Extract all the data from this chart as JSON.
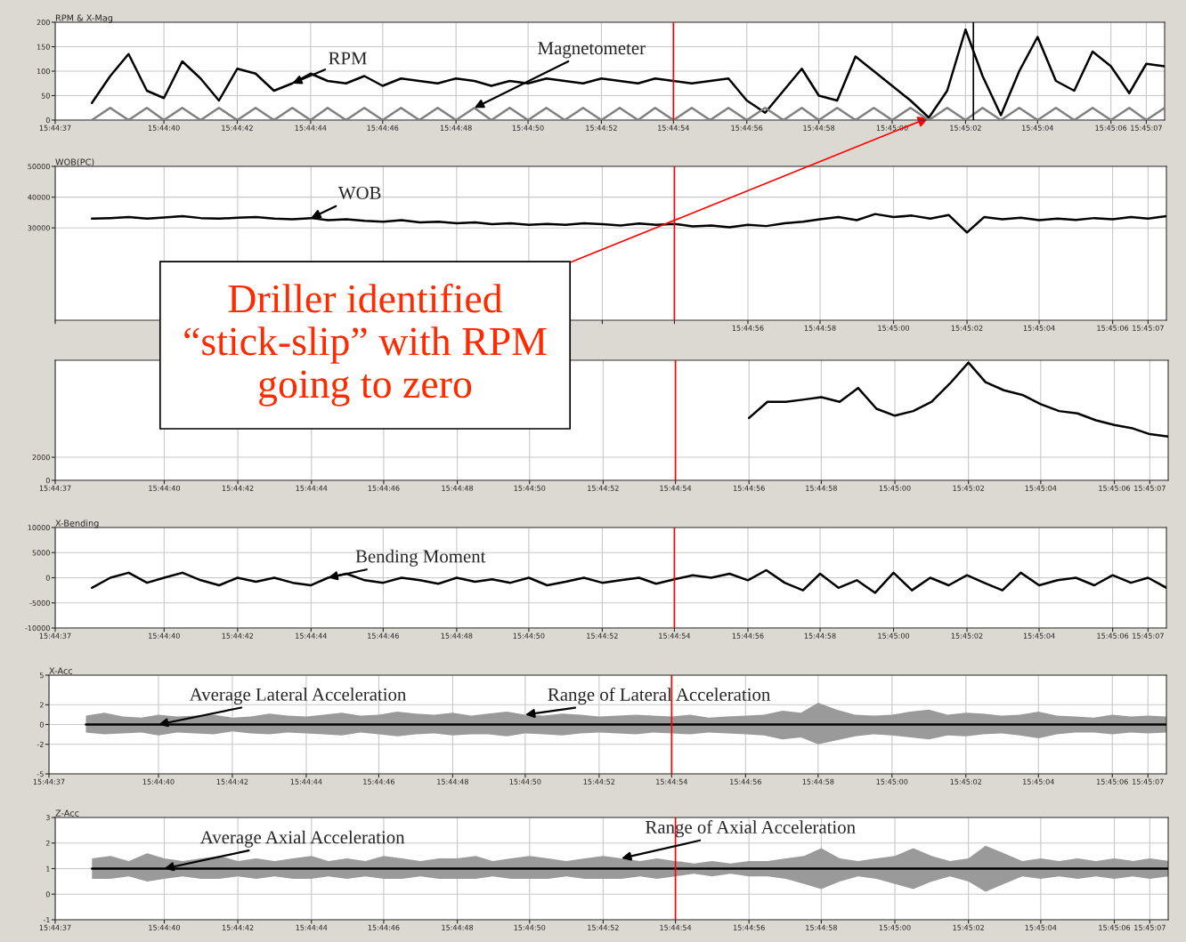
{
  "chart_data": [
    {
      "type": "line",
      "title": "RPM & X-Mag",
      "x": [
        15.74389,
        15.74403,
        15.74417,
        15.74431,
        15.74444,
        15.74458,
        15.74472,
        15.74486,
        15.745,
        15.74514,
        15.74528,
        15.74542,
        15.74556,
        15.74569,
        15.74583,
        15.74597,
        15.74611,
        15.74625,
        15.74639,
        15.74653,
        15.74667,
        15.74681,
        15.74694,
        15.74708,
        15.74722,
        15.74736,
        15.7475,
        15.74764,
        15.74778,
        15.74792,
        15.74806,
        15.74819,
        15.74833,
        15.74847,
        15.74861,
        15.74875,
        15.74889,
        15.74903,
        15.74917,
        15.74931,
        15.74944,
        15.74958,
        15.74972,
        15.74986,
        15.75,
        15.75014,
        15.75028,
        15.75042,
        15.75056,
        15.75069,
        15.75083,
        15.75097,
        15.75111,
        15.75125,
        15.75139,
        15.75153,
        15.75167,
        15.75181,
        15.75194,
        15.75208
      ],
      "series": [
        {
          "color": "#000000",
          "values": [
            35,
            90,
            135,
            60,
            45,
            120,
            85,
            40,
            105,
            95,
            60,
            75,
            95,
            80,
            75,
            90,
            70,
            85,
            80,
            75,
            85,
            80,
            70,
            80,
            75,
            85,
            80,
            75,
            85,
            80,
            75,
            85,
            80,
            75,
            80,
            85,
            40,
            15,
            60,
            105,
            50,
            40,
            130,
            100,
            70,
            40,
            5,
            60,
            185,
            90,
            10,
            100,
            170,
            80,
            60,
            140,
            110,
            55,
            115,
            110
          ]
        },
        {
          "color": "#808080",
          "values": [
            0,
            25,
            0,
            25,
            0,
            25,
            0,
            25,
            0,
            25,
            0,
            25,
            0,
            25,
            0,
            25,
            0,
            25,
            0,
            25,
            0,
            25,
            0,
            25,
            0,
            25,
            0,
            25,
            0,
            25,
            0,
            25,
            0,
            25,
            0,
            25,
            0,
            25,
            0,
            25,
            0,
            25,
            0,
            25,
            0,
            25,
            0,
            25,
            0,
            25,
            0,
            25,
            0,
            25,
            0,
            25,
            0,
            25,
            0,
            25
          ]
        }
      ],
      "xlim": [
        15.74361,
        15.75208
      ],
      "xticks": [
        {
          "value": 15.74361,
          "label": "15:44:37"
        },
        {
          "value": 15.74444,
          "label": "15:44:40"
        },
        {
          "value": 15.745,
          "label": "15:44:42"
        },
        {
          "value": 15.74556,
          "label": "15:44:44"
        },
        {
          "value": 15.74611,
          "label": "15:44:46"
        },
        {
          "value": 15.74667,
          "label": "15:44:48"
        },
        {
          "value": 15.74722,
          "label": "15:44:50"
        },
        {
          "value": 15.74778,
          "label": "15:44:52"
        },
        {
          "value": 15.74833,
          "label": "15:44:54"
        },
        {
          "value": 15.74889,
          "label": "15:44:56"
        },
        {
          "value": 15.74944,
          "label": "15:44:58"
        },
        {
          "value": 15.75,
          "label": "15:45:00"
        },
        {
          "value": 15.75056,
          "label": "15:45:02"
        },
        {
          "value": 15.75111,
          "label": "15:45:04"
        },
        {
          "value": 15.75167,
          "label": "15:45:06"
        },
        {
          "value": 15.75194,
          "label": "15:45:07"
        }
      ],
      "ylim": [
        0,
        200
      ],
      "yticks": [
        0,
        50,
        100,
        150,
        200
      ],
      "grid": true,
      "ref_lines": [
        {
          "axis": "x",
          "value": 15.74833,
          "color": "#ff0000"
        },
        {
          "axis": "x",
          "value": 15.75062,
          "color": "#000000"
        }
      ],
      "annotations": [
        {
          "text": "RPM",
          "x": 15.74542,
          "y": 75
        },
        {
          "text": "Magnetometer",
          "x": 15.74681,
          "y": 25
        },
        {
          "text": "Driller identified “stick-slip” with RPM going to zero",
          "x": 15.75028,
          "y": 5
        }
      ]
    },
    {
      "type": "line",
      "title": "WOB(PC)",
      "x": [
        15.74389,
        15.74403,
        15.74417,
        15.74431,
        15.74444,
        15.74458,
        15.74472,
        15.74486,
        15.745,
        15.74514,
        15.74528,
        15.74542,
        15.74556,
        15.74569,
        15.74583,
        15.74597,
        15.74611,
        15.74625,
        15.74639,
        15.74653,
        15.74667,
        15.74681,
        15.74694,
        15.74708,
        15.74722,
        15.74736,
        15.7475,
        15.74764,
        15.74778,
        15.74792,
        15.74806,
        15.74819,
        15.74833,
        15.74847,
        15.74861,
        15.74875,
        15.74889,
        15.74903,
        15.74917,
        15.74931,
        15.74944,
        15.74958,
        15.74972,
        15.74986,
        15.75,
        15.75014,
        15.75028,
        15.75042,
        15.75056,
        15.75069,
        15.75083,
        15.75097,
        15.75111,
        15.75125,
        15.75139,
        15.75153,
        15.75167,
        15.75181,
        15.75194,
        15.75208
      ],
      "series": [
        {
          "color": "#000000",
          "values": [
            33000,
            33200,
            33500,
            33000,
            33400,
            33800,
            33200,
            33000,
            33300,
            33500,
            33000,
            32800,
            33200,
            32500,
            32800,
            32300,
            32000,
            32500,
            31800,
            32000,
            31500,
            31800,
            31200,
            31500,
            31000,
            31300,
            31000,
            31500,
            31200,
            30800,
            31400,
            31000,
            31300,
            30500,
            30800,
            30200,
            31000,
            30600,
            31500,
            32000,
            32800,
            33500,
            32500,
            34500,
            33500,
            34000,
            33000,
            34200,
            28500,
            33500,
            32800,
            33300,
            32500,
            33000,
            32600,
            33200,
            32800,
            33500,
            33000,
            33800
          ]
        }
      ],
      "xlim": [
        15.74361,
        15.75208
      ],
      "xticks": [
        {
          "value": 15.74361,
          "label": null
        },
        {
          "value": 15.74444,
          "label": null
        },
        {
          "value": 15.745,
          "label": null
        },
        {
          "value": 15.74556,
          "label": null
        },
        {
          "value": 15.74611,
          "label": null
        },
        {
          "value": 15.74667,
          "label": null
        },
        {
          "value": 15.74722,
          "label": null
        },
        {
          "value": 15.74778,
          "label": null
        },
        {
          "value": 15.74833,
          "label": null
        },
        {
          "value": 15.74889,
          "label": "15:44:56"
        },
        {
          "value": 15.74944,
          "label": "15:44:58"
        },
        {
          "value": 15.75,
          "label": "15:45:00"
        },
        {
          "value": 15.75056,
          "label": "15:45:02"
        },
        {
          "value": 15.75111,
          "label": "15:45:04"
        },
        {
          "value": 15.75167,
          "label": "15:45:06"
        },
        {
          "value": 15.75194,
          "label": "15:45:07"
        }
      ],
      "ylim": [
        0,
        50000
      ],
      "yticks": [
        30000,
        40000,
        50000
      ],
      "grid": true,
      "ref_lines": [
        {
          "axis": "x",
          "value": 15.74833,
          "color": "#ff0000"
        }
      ],
      "annotations": [
        {
          "text": "WOB",
          "x": 15.74556,
          "y": 33200
        }
      ]
    },
    {
      "type": "line",
      "x": [
        15.74889,
        15.74903,
        15.74917,
        15.74931,
        15.74944,
        15.74958,
        15.74972,
        15.74986,
        15.75,
        15.75014,
        15.75028,
        15.75042,
        15.75056,
        15.75069,
        15.75083,
        15.75097,
        15.75111,
        15.75125,
        15.75139,
        15.75153,
        15.75167,
        15.75181,
        15.75194,
        15.75208
      ],
      "series": [
        {
          "color": "#000000",
          "values": [
            5400,
            6800,
            6800,
            7000,
            7200,
            6800,
            8000,
            6200,
            5600,
            6000,
            6800,
            8400,
            10200,
            8500,
            7800,
            7400,
            6600,
            6000,
            5800,
            5200,
            4800,
            4500,
            4000,
            3800
          ]
        }
      ],
      "xlim": [
        15.74361,
        15.75208
      ],
      "xticks": [
        {
          "value": 15.74361,
          "label": "15:44:37"
        },
        {
          "value": 15.74444,
          "label": "15:44:40"
        },
        {
          "value": 15.745,
          "label": "15:44:42"
        },
        {
          "value": 15.74556,
          "label": "15:44:44"
        },
        {
          "value": 15.74611,
          "label": "15:44:46"
        },
        {
          "value": 15.74667,
          "label": "15:44:48"
        },
        {
          "value": 15.74722,
          "label": "15:44:50"
        },
        {
          "value": 15.74778,
          "label": "15:44:52"
        },
        {
          "value": 15.74833,
          "label": "15:44:54"
        },
        {
          "value": 15.74889,
          "label": "15:44:56"
        },
        {
          "value": 15.74944,
          "label": "15:44:58"
        },
        {
          "value": 15.75,
          "label": "15:45:00"
        },
        {
          "value": 15.75056,
          "label": "15:45:02"
        },
        {
          "value": 15.75111,
          "label": "15:45:04"
        },
        {
          "value": 15.75167,
          "label": "15:45:06"
        },
        {
          "value": 15.75194,
          "label": "15:45:07"
        }
      ],
      "ylim": [
        0,
        10400
      ],
      "yticks": [
        0,
        2000
      ],
      "grid": true,
      "ref_lines": [
        {
          "axis": "x",
          "value": 15.74833,
          "color": "#ff0000"
        }
      ]
    },
    {
      "type": "line",
      "title": "X-Bending",
      "x": [
        15.74389,
        15.74403,
        15.74417,
        15.74431,
        15.74444,
        15.74458,
        15.74472,
        15.74486,
        15.745,
        15.74514,
        15.74528,
        15.74542,
        15.74556,
        15.74569,
        15.74583,
        15.74597,
        15.74611,
        15.74625,
        15.74639,
        15.74653,
        15.74667,
        15.74681,
        15.74694,
        15.74708,
        15.74722,
        15.74736,
        15.7475,
        15.74764,
        15.74778,
        15.74792,
        15.74806,
        15.74819,
        15.74833,
        15.74847,
        15.74861,
        15.74875,
        15.74889,
        15.74903,
        15.74917,
        15.74931,
        15.74944,
        15.74958,
        15.74972,
        15.74986,
        15.75,
        15.75014,
        15.75028,
        15.75042,
        15.75056,
        15.75069,
        15.75083,
        15.75097,
        15.75111,
        15.75125,
        15.75139,
        15.75153,
        15.75167,
        15.75181,
        15.75194,
        15.75208
      ],
      "series": [
        {
          "color": "#000000",
          "values": [
            -2000,
            0,
            1000,
            -1000,
            0,
            1000,
            -500,
            -1500,
            0,
            -800,
            0,
            -1000,
            -1500,
            0,
            800,
            -500,
            -1000,
            0,
            -500,
            -1200,
            0,
            -800,
            -300,
            -1000,
            0,
            -1500,
            -800,
            0,
            -1000,
            -500,
            0,
            -1200,
            -300,
            500,
            0,
            800,
            -500,
            1500,
            -1000,
            -2500,
            800,
            -2000,
            -500,
            -3000,
            1000,
            -2500,
            0,
            -1500,
            500,
            -1000,
            -2500,
            1000,
            -1500,
            -500,
            0,
            -1500,
            500,
            -1000,
            0,
            -2000
          ]
        }
      ],
      "xlim": [
        15.74361,
        15.75208
      ],
      "xticks": [
        {
          "value": 15.74361,
          "label": "15:44:37"
        },
        {
          "value": 15.74444,
          "label": "15:44:40"
        },
        {
          "value": 15.745,
          "label": "15:44:42"
        },
        {
          "value": 15.74556,
          "label": "15:44:44"
        },
        {
          "value": 15.74611,
          "label": "15:44:46"
        },
        {
          "value": 15.74667,
          "label": "15:44:48"
        },
        {
          "value": 15.74722,
          "label": "15:44:50"
        },
        {
          "value": 15.74778,
          "label": "15:44:52"
        },
        {
          "value": 15.74833,
          "label": "15:44:54"
        },
        {
          "value": 15.74889,
          "label": "15:44:56"
        },
        {
          "value": 15.74944,
          "label": "15:44:58"
        },
        {
          "value": 15.75,
          "label": "15:45:00"
        },
        {
          "value": 15.75056,
          "label": "15:45:02"
        },
        {
          "value": 15.75111,
          "label": "15:45:04"
        },
        {
          "value": 15.75167,
          "label": "15:45:06"
        },
        {
          "value": 15.75194,
          "label": "15:45:07"
        }
      ],
      "ylim": [
        -10000,
        10000
      ],
      "yticks": [
        -10000,
        -5000,
        0,
        5000,
        10000
      ],
      "grid": true,
      "ref_lines": [
        {
          "axis": "x",
          "value": 15.74833,
          "color": "#ff0000"
        }
      ],
      "annotations": [
        {
          "text": "Bending Moment",
          "x": 15.74569,
          "y": 0
        }
      ]
    },
    {
      "type": "line",
      "title": "X-Acc",
      "x": [
        15.74389,
        15.74403,
        15.74417,
        15.74431,
        15.74444,
        15.74458,
        15.74472,
        15.74486,
        15.745,
        15.74514,
        15.74528,
        15.74542,
        15.74556,
        15.74569,
        15.74583,
        15.74597,
        15.74611,
        15.74625,
        15.74639,
        15.74653,
        15.74667,
        15.74681,
        15.74694,
        15.74708,
        15.74722,
        15.74736,
        15.7475,
        15.74764,
        15.74778,
        15.74792,
        15.74806,
        15.74819,
        15.74833,
        15.74847,
        15.74861,
        15.74875,
        15.74889,
        15.74903,
        15.74917,
        15.74931,
        15.74944,
        15.74958,
        15.74972,
        15.74986,
        15.75,
        15.75014,
        15.75028,
        15.75042,
        15.75056,
        15.75069,
        15.75083,
        15.75097,
        15.75111,
        15.75125,
        15.75139,
        15.75153,
        15.75167,
        15.75181,
        15.75194,
        15.75208
      ],
      "series": [
        {
          "color": "#000000",
          "values": [
            0,
            0,
            0,
            0,
            0,
            0,
            0,
            0,
            0,
            0,
            0,
            0,
            0,
            0,
            0,
            0,
            0,
            0,
            0,
            0,
            0,
            0,
            0,
            0,
            0,
            0,
            0,
            0,
            0,
            0,
            0,
            0,
            0,
            0,
            0,
            0,
            0,
            0,
            0,
            0,
            0,
            0,
            0,
            0,
            0,
            0,
            0,
            0,
            0,
            0,
            0,
            0,
            0,
            0,
            0,
            0,
            0,
            0,
            0,
            0
          ],
          "upper": [
            0.9,
            1.2,
            0.8,
            0.7,
            1.0,
            0.8,
            0.9,
            1.0,
            0.7,
            0.8,
            1.1,
            0.9,
            0.8,
            1.0,
            1.2,
            0.9,
            1.0,
            1.3,
            1.1,
            1.0,
            1.2,
            0.9,
            1.1,
            1.3,
            1.0,
            0.9,
            1.1,
            1.0,
            0.8,
            0.9,
            1.0,
            0.9,
            0.8,
            1.0,
            0.7,
            0.8,
            0.9,
            1.0,
            1.4,
            1.2,
            2.2,
            1.5,
            1.0,
            0.9,
            1.0,
            1.3,
            1.5,
            1.0,
            1.2,
            1.1,
            0.9,
            1.0,
            1.3,
            0.9,
            0.8,
            0.7,
            1.0,
            0.8,
            0.9,
            0.8
          ],
          "lower": [
            -0.8,
            -1.0,
            -0.9,
            -0.8,
            -1.1,
            -0.8,
            -0.9,
            -1.0,
            -0.7,
            -0.9,
            -1.0,
            -0.8,
            -0.9,
            -1.0,
            -1.1,
            -0.8,
            -1.0,
            -1.2,
            -1.0,
            -0.9,
            -1.1,
            -1.0,
            -1.0,
            -1.2,
            -0.9,
            -1.0,
            -1.1,
            -0.9,
            -0.8,
            -0.9,
            -1.0,
            -0.8,
            -0.9,
            -1.0,
            -0.8,
            -0.9,
            -1.0,
            -1.1,
            -1.5,
            -1.3,
            -2.0,
            -1.6,
            -1.2,
            -1.0,
            -1.1,
            -1.3,
            -1.5,
            -1.1,
            -1.2,
            -1.0,
            -0.9,
            -1.1,
            -1.4,
            -1.0,
            -0.8,
            -0.8,
            -1.0,
            -0.8,
            -0.9,
            -0.8
          ]
        }
      ],
      "xlim": [
        15.74361,
        15.75208
      ],
      "xticks": [
        {
          "value": 15.74361,
          "label": "15:44:37"
        },
        {
          "value": 15.74444,
          "label": "15:44:40"
        },
        {
          "value": 15.745,
          "label": "15:44:42"
        },
        {
          "value": 15.74556,
          "label": "15:44:44"
        },
        {
          "value": 15.74611,
          "label": "15:44:46"
        },
        {
          "value": 15.74667,
          "label": "15:44:48"
        },
        {
          "value": 15.74722,
          "label": "15:44:50"
        },
        {
          "value": 15.74778,
          "label": "15:44:52"
        },
        {
          "value": 15.74833,
          "label": "15:44:54"
        },
        {
          "value": 15.74889,
          "label": "15:44:56"
        },
        {
          "value": 15.74944,
          "label": "15:44:58"
        },
        {
          "value": 15.75,
          "label": "15:45:00"
        },
        {
          "value": 15.75056,
          "label": "15:45:02"
        },
        {
          "value": 15.75111,
          "label": "15:45:04"
        },
        {
          "value": 15.75167,
          "label": "15:45:06"
        },
        {
          "value": 15.75194,
          "label": "15:45:07"
        }
      ],
      "ylim": [
        -5,
        5
      ],
      "yticks": [
        -5,
        -2,
        0,
        2,
        5
      ],
      "grid": true,
      "ref_lines": [
        {
          "axis": "x",
          "value": 15.74833,
          "color": "#ff0000"
        }
      ],
      "annotations": [
        {
          "text": "Average Lateral Acceleration",
          "x": 15.74444,
          "y": 0
        },
        {
          "text": "Range of Lateral Acceleration",
          "x": 15.74722,
          "y": 1.0
        }
      ]
    },
    {
      "type": "line",
      "title": "Z-Acc",
      "x": [
        15.74389,
        15.74403,
        15.74417,
        15.74431,
        15.74444,
        15.74458,
        15.74472,
        15.74486,
        15.745,
        15.74514,
        15.74528,
        15.74542,
        15.74556,
        15.74569,
        15.74583,
        15.74597,
        15.74611,
        15.74625,
        15.74639,
        15.74653,
        15.74667,
        15.74681,
        15.74694,
        15.74708,
        15.74722,
        15.74736,
        15.7475,
        15.74764,
        15.74778,
        15.74792,
        15.74806,
        15.74819,
        15.74833,
        15.74847,
        15.74861,
        15.74875,
        15.74889,
        15.74903,
        15.74917,
        15.74931,
        15.74944,
        15.74958,
        15.74972,
        15.74986,
        15.75,
        15.75014,
        15.75028,
        15.75042,
        15.75056,
        15.75069,
        15.75083,
        15.75097,
        15.75111,
        15.75125,
        15.75139,
        15.75153,
        15.75167,
        15.75181,
        15.75194,
        15.75208
      ],
      "series": [
        {
          "color": "#000000",
          "values": [
            1,
            1,
            1,
            1,
            1,
            1,
            1,
            1,
            1,
            1,
            1,
            1,
            1,
            1,
            1,
            1,
            1,
            1,
            1,
            1,
            1,
            1,
            1,
            1,
            1,
            1,
            1,
            1,
            1,
            1,
            1,
            1,
            1,
            1,
            1,
            1,
            1,
            1,
            1,
            1,
            1,
            1,
            1,
            1,
            1,
            1,
            1,
            1,
            1,
            1,
            1,
            1,
            1,
            1,
            1,
            1,
            1,
            1,
            1,
            1
          ],
          "upper": [
            1.4,
            1.5,
            1.3,
            1.6,
            1.4,
            1.3,
            1.4,
            1.5,
            1.3,
            1.4,
            1.3,
            1.4,
            1.5,
            1.3,
            1.4,
            1.3,
            1.5,
            1.4,
            1.3,
            1.4,
            1.4,
            1.5,
            1.3,
            1.4,
            1.5,
            1.4,
            1.3,
            1.4,
            1.5,
            1.4,
            1.3,
            1.4,
            1.3,
            1.2,
            1.3,
            1.2,
            1.3,
            1.3,
            1.4,
            1.5,
            1.8,
            1.4,
            1.3,
            1.4,
            1.5,
            1.8,
            1.5,
            1.3,
            1.4,
            1.9,
            1.6,
            1.3,
            1.4,
            1.3,
            1.4,
            1.3,
            1.4,
            1.3,
            1.4,
            1.3
          ],
          "lower": [
            0.6,
            0.6,
            0.7,
            0.5,
            0.6,
            0.7,
            0.6,
            0.6,
            0.7,
            0.6,
            0.7,
            0.6,
            0.6,
            0.7,
            0.6,
            0.7,
            0.6,
            0.6,
            0.7,
            0.6,
            0.6,
            0.6,
            0.7,
            0.6,
            0.6,
            0.6,
            0.7,
            0.6,
            0.6,
            0.6,
            0.7,
            0.6,
            0.7,
            0.8,
            0.7,
            0.8,
            0.7,
            0.7,
            0.6,
            0.4,
            0.2,
            0.5,
            0.7,
            0.6,
            0.4,
            0.2,
            0.5,
            0.7,
            0.5,
            0.1,
            0.4,
            0.7,
            0.6,
            0.7,
            0.6,
            0.7,
            0.6,
            0.7,
            0.6,
            0.7
          ]
        }
      ],
      "xlim": [
        15.74361,
        15.75208
      ],
      "xticks": [
        {
          "value": 15.74361,
          "label": "15:44:37"
        },
        {
          "value": 15.74444,
          "label": "15:44:40"
        },
        {
          "value": 15.745,
          "label": "15:44:42"
        },
        {
          "value": 15.74556,
          "label": "15:44:44"
        },
        {
          "value": 15.74611,
          "label": "15:44:46"
        },
        {
          "value": 15.74667,
          "label": "15:44:48"
        },
        {
          "value": 15.74722,
          "label": "15:44:50"
        },
        {
          "value": 15.74778,
          "label": "15:44:52"
        },
        {
          "value": 15.74833,
          "label": "15:44:54"
        },
        {
          "value": 15.74889,
          "label": "15:44:56"
        },
        {
          "value": 15.74944,
          "label": "15:44:58"
        },
        {
          "value": 15.75,
          "label": "15:45:00"
        },
        {
          "value": 15.75056,
          "label": "15:45:02"
        },
        {
          "value": 15.75111,
          "label": "15:45:04"
        },
        {
          "value": 15.75167,
          "label": "15:45:06"
        },
        {
          "value": 15.75194,
          "label": "15:45:07"
        }
      ],
      "ylim": [
        -1,
        3
      ],
      "yticks": [
        -1,
        0,
        1,
        2,
        3
      ],
      "grid": true,
      "ref_lines": [
        {
          "axis": "x",
          "value": 15.74833,
          "color": "#ff0000"
        }
      ],
      "annotations": [
        {
          "text": "Average Axial Acceleration",
          "x": 15.74444,
          "y": 1
        },
        {
          "text": "Range of Axial Acceleration",
          "x": 15.74792,
          "y": 1.4
        }
      ]
    }
  ]
}
